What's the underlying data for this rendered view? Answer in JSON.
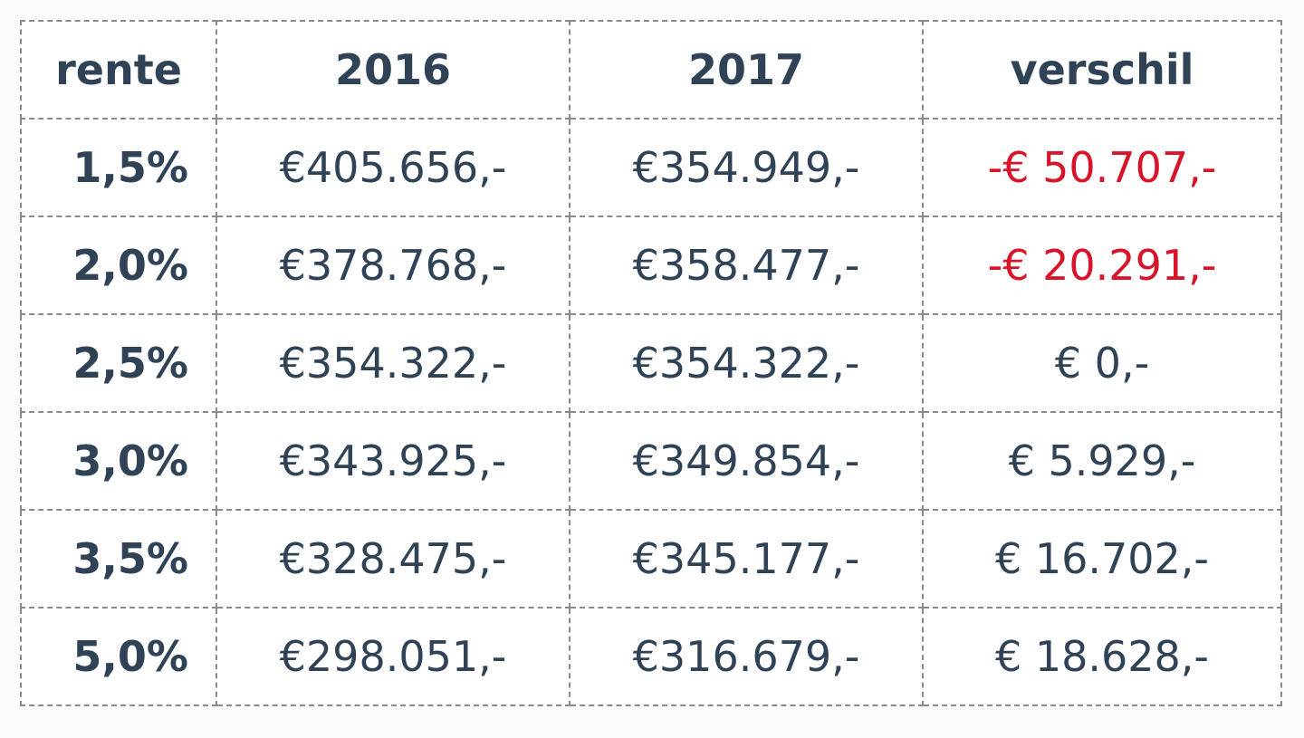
{
  "table": {
    "header": [
      "rente",
      "2016",
      "2017",
      "verschil"
    ],
    "rows": [
      [
        "1,5%",
        "€405.656,-",
        "€354.949,-",
        "-€ 50.707,-"
      ],
      [
        "2,0%",
        "€378.768,-",
        "€358.477,-",
        "-€ 20.291,-"
      ],
      [
        "2,5%",
        "€354.322,-",
        "€354.322,-",
        "€ 0,-"
      ],
      [
        "3,0%",
        "€343.925,-",
        "€349.854,-",
        "€ 5.929,-"
      ],
      [
        "3,5%",
        "€328.475,-",
        "€345.177,-",
        "€ 16.702,-"
      ],
      [
        "5,0%",
        "€298.051,-",
        "€316.679,-",
        "€ 18.628,-"
      ]
    ]
  }
}
